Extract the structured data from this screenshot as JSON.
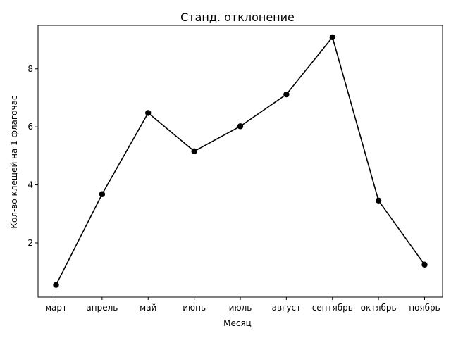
{
  "chart_data": {
    "type": "line",
    "title": "Станд. отклонение",
    "xlabel": "Месяц",
    "ylabel": "Кол-во клещей на 1 флагочас",
    "categories": [
      "март",
      "апрель",
      "май",
      "июнь",
      "июль",
      "август",
      "сентябрь",
      "октябрь",
      "ноябрь"
    ],
    "values": [
      0.55,
      3.68,
      6.48,
      5.16,
      6.02,
      7.12,
      9.09,
      3.46,
      1.25
    ],
    "yticks": [
      2,
      4,
      6,
      8
    ],
    "ylim": [
      0.13,
      9.5
    ],
    "grid": false,
    "color": "#000000"
  }
}
